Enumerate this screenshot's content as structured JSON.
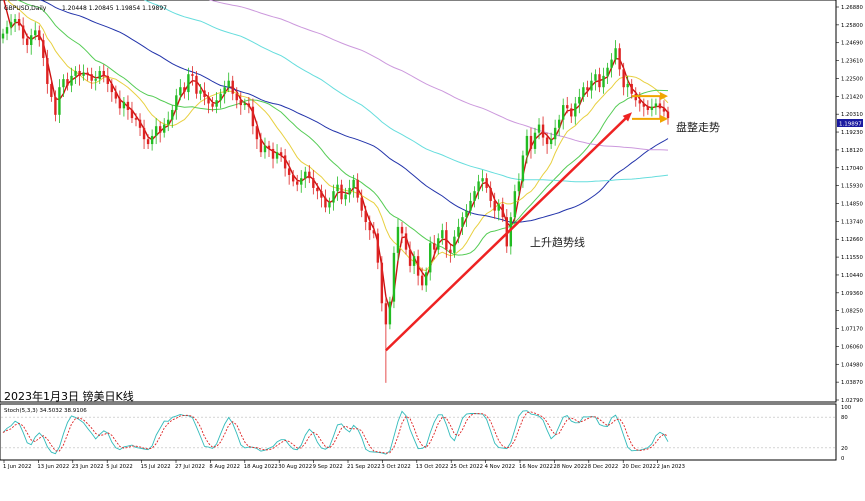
{
  "window": {
    "symbol_label": "GBPUSD,Daily",
    "ohlc_label": "1.20448 1.20845 1.19854 1.19897",
    "date_caption": "2023年1月3日 镑美日K线"
  },
  "annotations": {
    "trendline_label": "上升趋势线",
    "consolidation_label": "盘整走势"
  },
  "colors": {
    "up_candle": "#22bb22",
    "down_candle": "#dd2222",
    "ma_red": "#cc1111",
    "ma_yellow": "#e8d040",
    "ma_green": "#55cc55",
    "ma_blue": "#2233aa",
    "ma_cyan": "#66dddd",
    "ma_purple": "#cc99dd",
    "trendline": "#ee2222",
    "arrow": "#f0a500",
    "stoch_main": "#33bbbb",
    "stoch_signal": "#dd2222"
  },
  "chart_data": {
    "type": "candlestick",
    "symbol": "GBPUSD",
    "timeframe": "Daily",
    "last_price": "1.19897",
    "ylim": [
      1.0279,
      1.268
    ],
    "y_ticks": [
      "1.26880",
      "1.25800",
      "1.24690",
      "1.23610",
      "1.22500",
      "1.21420",
      "1.20310",
      "1.19230",
      "1.18120",
      "1.17040",
      "1.15930",
      "1.14850",
      "1.13740",
      "1.12660",
      "1.11550",
      "1.10440",
      "1.09360",
      "1.08250",
      "1.07170",
      "1.06060",
      "1.04980",
      "1.03870",
      "1.02790"
    ],
    "x_ticks": [
      "1 Jun 2022",
      "13 Jun 2022",
      "23 Jun 2022",
      "5 Jul 2022",
      "15 Jul 2022",
      "27 Jul 2022",
      "8 Aug 2022",
      "18 Aug 2022",
      "30 Aug 2022",
      "9 Sep 2022",
      "21 Sep 2022",
      "3 Oct 2022",
      "13 Oct 2022",
      "25 Oct 2022",
      "4 Nov 2022",
      "16 Nov 2022",
      "28 Nov 2022",
      "8 Dec 2022",
      "20 Dec 2022",
      "2 Jan 2023"
    ],
    "close_series": [
      1.251,
      1.255,
      1.258,
      1.26,
      1.256,
      1.248,
      1.244,
      1.25,
      1.253,
      1.247,
      1.236,
      1.22,
      1.212,
      1.201,
      1.218,
      1.223,
      1.219,
      1.225,
      1.228,
      1.225,
      1.227,
      1.226,
      1.222,
      1.223,
      1.228,
      1.225,
      1.22,
      1.215,
      1.211,
      1.205,
      1.209,
      1.204,
      1.199,
      1.198,
      1.193,
      1.186,
      1.183,
      1.188,
      1.194,
      1.19,
      1.195,
      1.198,
      1.204,
      1.213,
      1.218,
      1.215,
      1.226,
      1.225,
      1.214,
      1.216,
      1.212,
      1.208,
      1.206,
      1.21,
      1.214,
      1.218,
      1.222,
      1.214,
      1.21,
      1.207,
      1.208,
      1.206,
      1.194,
      1.186,
      1.178,
      1.182,
      1.18,
      1.174,
      1.178,
      1.176,
      1.168,
      1.164,
      1.16,
      1.158,
      1.162,
      1.166,
      1.162,
      1.156,
      1.154,
      1.15,
      1.144,
      1.147,
      1.154,
      1.158,
      1.149,
      1.152,
      1.156,
      1.161,
      1.15,
      1.142,
      1.135,
      1.13,
      1.128,
      1.11,
      1.085,
      1.072,
      1.086,
      1.116,
      1.132,
      1.128,
      1.118,
      1.108,
      1.114,
      1.102,
      1.096,
      1.104,
      1.122,
      1.118,
      1.125,
      1.13,
      1.118,
      1.116,
      1.126,
      1.132,
      1.138,
      1.142,
      1.148,
      1.154,
      1.16,
      1.162,
      1.156,
      1.148,
      1.142,
      1.146,
      1.138,
      1.12,
      1.138,
      1.154,
      1.16,
      1.176,
      1.188,
      1.18,
      1.19,
      1.195,
      1.187,
      1.183,
      1.186,
      1.193,
      1.198,
      1.207,
      1.205,
      1.2,
      1.208,
      1.212,
      1.218,
      1.216,
      1.222,
      1.226,
      1.218,
      1.225,
      1.23,
      1.235,
      1.242,
      1.229,
      1.218,
      1.22,
      1.214,
      1.21,
      1.208,
      1.206,
      1.204,
      1.206,
      1.208,
      1.205,
      1.203,
      1.199
    ],
    "moving_averages": [
      {
        "color_key": "ma_red",
        "type": "fast"
      },
      {
        "color_key": "ma_yellow",
        "type": "medium"
      },
      {
        "color_key": "ma_green",
        "type": "slow"
      },
      {
        "color_key": "ma_blue",
        "type": "slower"
      },
      {
        "color_key": "ma_cyan",
        "type": "long"
      },
      {
        "color_key": "ma_purple",
        "type": "longest"
      }
    ],
    "trendline": {
      "from_index": 95,
      "to_index": 155,
      "from_price": 1.056,
      "to_price": 1.2
    },
    "stochastic": {
      "label": "Stoch(5,3,3) 34.5032 38.9106",
      "ylim": [
        0,
        100
      ],
      "y_ticks": [
        "100",
        "80",
        "20",
        "0"
      ],
      "levels": [
        80,
        20
      ]
    }
  }
}
